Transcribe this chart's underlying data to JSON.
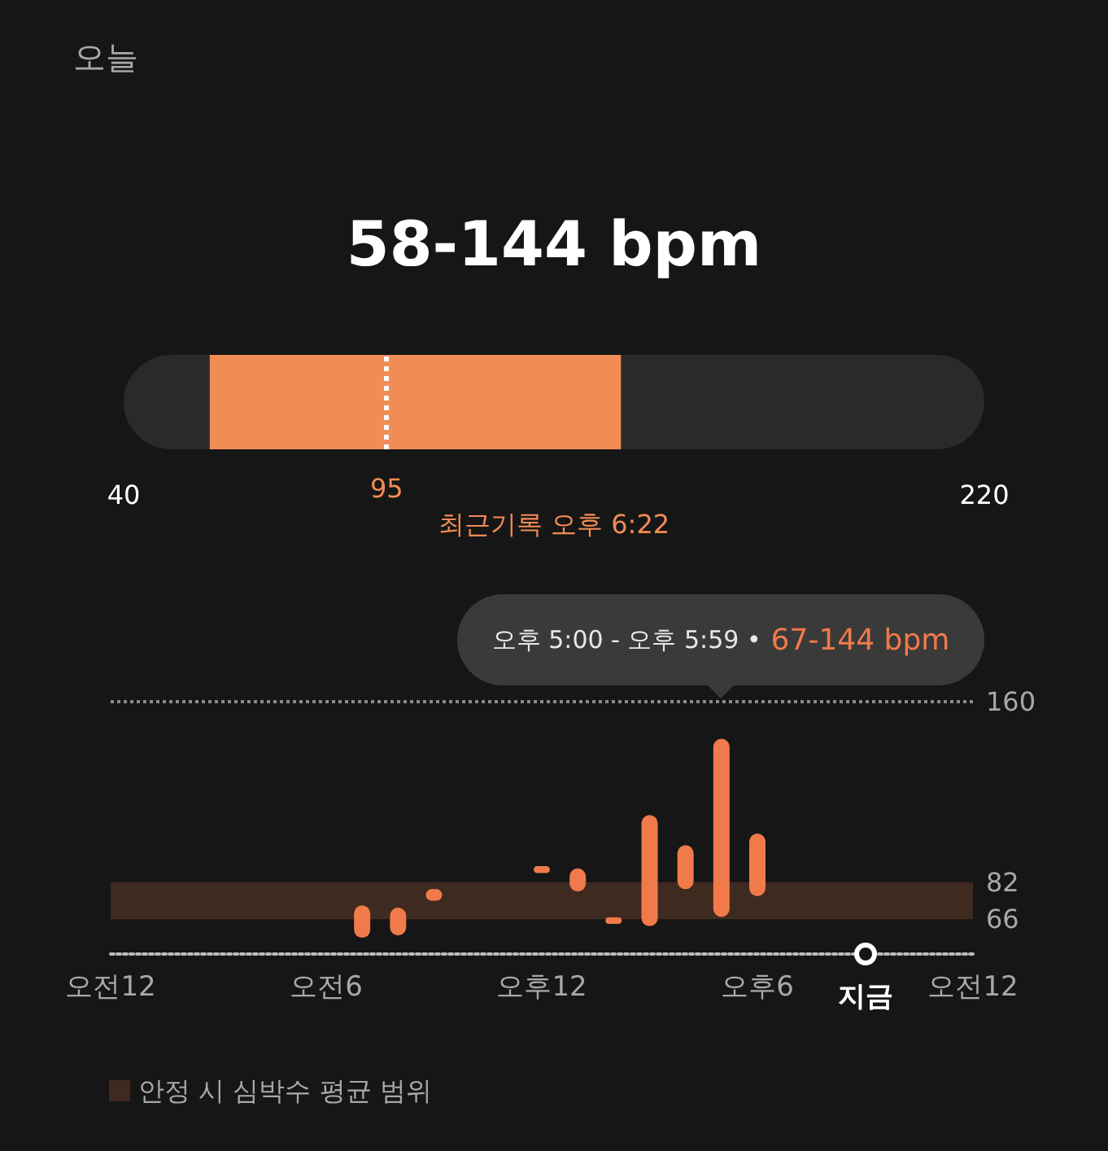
{
  "chart_data": [
    {
      "type": "bar",
      "orientation": "horizontal",
      "title": "오늘",
      "subtitle": "58-144 bpm",
      "categories": [
        null
      ],
      "base": [
        58
      ],
      "values": [
        86
      ],
      "color": "#f28c55",
      "xlim": [
        40,
        220
      ],
      "xticks": [
        40,
        220
      ],
      "grid": false,
      "legend": false,
      "ref_lines": [
        {
          "axis": "x",
          "value": 95,
          "label": "95",
          "color": "#ffffff",
          "line_style": "dotted"
        }
      ],
      "annotations": [
        "최근기록 오후 6:22"
      ]
    },
    {
      "type": "bar",
      "categories": [
        "오전12",
        null,
        null,
        null,
        null,
        null,
        "오전6",
        null,
        null,
        null,
        null,
        null,
        "오후12",
        null,
        null,
        null,
        null,
        null,
        "오후6",
        null,
        null,
        "지금",
        null,
        null,
        "오전12"
      ],
      "base": [
        null,
        null,
        null,
        null,
        null,
        null,
        null,
        58,
        59,
        74,
        null,
        null,
        86,
        78,
        64,
        63,
        79,
        67,
        76,
        null,
        null,
        null,
        null,
        null,
        null
      ],
      "values": [
        null,
        null,
        null,
        null,
        null,
        null,
        null,
        14,
        12,
        5,
        null,
        null,
        3,
        10,
        2,
        48,
        19,
        77,
        27,
        null,
        null,
        null,
        null,
        null,
        null
      ],
      "color": "#f07a4a",
      "ylim": [
        51,
        160
      ],
      "yticks": [
        66,
        82,
        160
      ],
      "grid": false,
      "legend": "bottom left",
      "bands": [
        {
          "axis": "y",
          "from": 66,
          "to": 82,
          "label": "안정 시 심박수 평균 범위",
          "color": "#3f2a20"
        }
      ],
      "ref_lines": [
        {
          "axis": "y",
          "value": 160,
          "color": "#8a8a8a",
          "line_style": "dotted"
        }
      ],
      "annotations": [
        "오후 5:00 - 오후 5:59 •",
        "67-144 bpm"
      ]
    }
  ]
}
